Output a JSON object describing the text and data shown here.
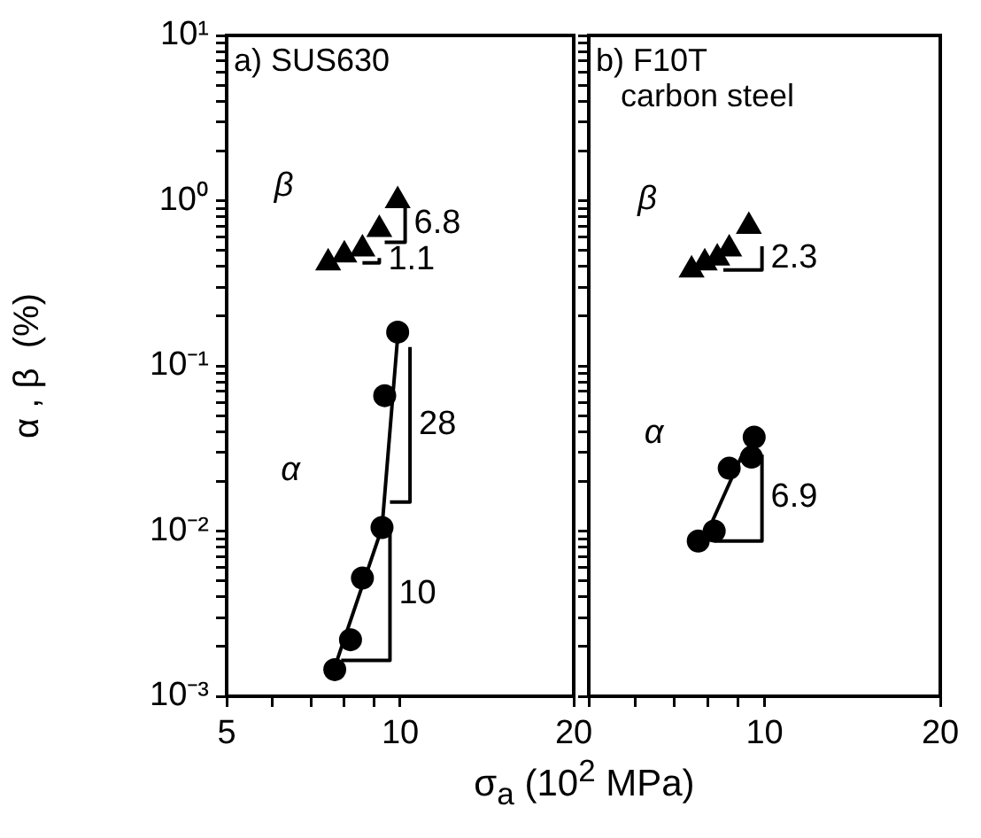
{
  "chart_data": [
    {
      "type": "scatter",
      "ylabel": "α , β  (%)",
      "xlabel": "σ$_{a}$ (10$^{2}$ MPa)",
      "log": "xy",
      "xlim": [
        5,
        20
      ],
      "ylim": [
        0.001,
        10
      ],
      "xticks": [
        5,
        {
          "value": 6,
          "label": null
        },
        {
          "value": 7,
          "label": null
        },
        {
          "value": 8,
          "label": null
        },
        {
          "value": 9,
          "label": null
        },
        10,
        20
      ],
      "yticks": [
        {
          "value": 0.001,
          "label": "10⁻³"
        },
        {
          "value": 0.002,
          "label": null
        },
        {
          "value": 0.003,
          "label": null
        },
        {
          "value": 0.004,
          "label": null
        },
        {
          "value": 0.005,
          "label": null
        },
        {
          "value": 0.006,
          "label": null
        },
        {
          "value": 0.007,
          "label": null
        },
        {
          "value": 0.008,
          "label": null
        },
        {
          "value": 0.009,
          "label": null
        },
        {
          "value": 0.01,
          "label": "10⁻²"
        },
        {
          "value": 0.02,
          "label": null
        },
        {
          "value": 0.03,
          "label": null
        },
        {
          "value": 0.04,
          "label": null
        },
        {
          "value": 0.05,
          "label": null
        },
        {
          "value": 0.06,
          "label": null
        },
        {
          "value": 0.07,
          "label": null
        },
        {
          "value": 0.08,
          "label": null
        },
        {
          "value": 0.09,
          "label": null
        },
        {
          "value": 0.1,
          "label": "10⁻¹"
        },
        {
          "value": 0.2,
          "label": null
        },
        {
          "value": 0.3,
          "label": null
        },
        {
          "value": 0.4,
          "label": null
        },
        {
          "value": 0.5,
          "label": null
        },
        {
          "value": 0.6,
          "label": null
        },
        {
          "value": 0.7,
          "label": null
        },
        {
          "value": 0.8,
          "label": null
        },
        {
          "value": 0.9,
          "label": null
        },
        {
          "value": 1,
          "label": "10⁰"
        },
        {
          "value": 2,
          "label": null
        },
        {
          "value": 3,
          "label": null
        },
        {
          "value": 4,
          "label": null
        },
        {
          "value": 5,
          "label": null
        },
        {
          "value": 6,
          "label": null
        },
        {
          "value": 7,
          "label": null
        },
        {
          "value": 8,
          "label": null
        },
        {
          "value": 9,
          "label": null
        },
        {
          "value": 10,
          "label": "10¹"
        }
      ],
      "series": [
        {
          "type": "scatter",
          "name": "β",
          "marker": "triangle",
          "color": "#000000",
          "x": [
            7.5,
            8.0,
            8.6,
            9.2,
            9.9
          ],
          "values": [
            0.42,
            0.47,
            0.51,
            0.67,
            1.0
          ]
        },
        {
          "type": "scatter",
          "name": "α",
          "marker": "circle",
          "color": "#000000",
          "x": [
            7.7,
            8.2,
            8.6,
            9.3,
            9.4,
            9.9
          ],
          "values": [
            0.00145,
            0.0022,
            0.0052,
            0.0105,
            0.066,
            0.16
          ]
        },
        {
          "type": "line",
          "marker": "none",
          "color": "#000000",
          "x": [
            7.7,
            9.3,
            9.9
          ],
          "values": [
            0.0015,
            0.0105,
            0.15
          ]
        },
        {
          "type": "line",
          "name": "10",
          "marker": "none",
          "color": "#000000",
          "x": [
            7.9,
            9.6,
            9.6
          ],
          "values": [
            0.00165,
            0.00165,
            0.0105
          ]
        },
        {
          "type": "line",
          "name": "28",
          "marker": "none",
          "color": "#000000",
          "x": [
            9.6,
            10.4,
            10.4
          ],
          "values": [
            0.015,
            0.015,
            0.13
          ]
        },
        {
          "type": "line",
          "name": "1.1",
          "marker": "none",
          "color": "#000000",
          "x": [
            8.6,
            9.2,
            9.2
          ],
          "values": [
            0.42,
            0.42,
            0.45
          ]
        },
        {
          "type": "line",
          "name": "6.8",
          "marker": "none",
          "color": "#000000",
          "x": [
            9.4,
            10.2,
            10.2
          ],
          "values": [
            0.56,
            0.56,
            0.95
          ]
        }
      ],
      "annotations": [
        "a) SUS630"
      ]
    },
    {
      "type": "scatter",
      "log": "xy",
      "tick_labels": "x",
      "xlim": [
        5,
        20
      ],
      "ylim": [
        0.001,
        10
      ],
      "xticks": [
        {
          "value": 5,
          "label": null
        },
        {
          "value": 6,
          "label": null
        },
        {
          "value": 7,
          "label": null
        },
        {
          "value": 8,
          "label": null
        },
        {
          "value": 9,
          "label": null
        },
        10,
        20
      ],
      "yticks": [
        {
          "value": 0.001,
          "label": null
        },
        {
          "value": 0.002,
          "label": null
        },
        {
          "value": 0.003,
          "label": null
        },
        {
          "value": 0.004,
          "label": null
        },
        {
          "value": 0.005,
          "label": null
        },
        {
          "value": 0.006,
          "label": null
        },
        {
          "value": 0.007,
          "label": null
        },
        {
          "value": 0.008,
          "label": null
        },
        {
          "value": 0.009,
          "label": null
        },
        {
          "value": 0.01,
          "label": null
        },
        {
          "value": 0.02,
          "label": null
        },
        {
          "value": 0.03,
          "label": null
        },
        {
          "value": 0.04,
          "label": null
        },
        {
          "value": 0.05,
          "label": null
        },
        {
          "value": 0.06,
          "label": null
        },
        {
          "value": 0.07,
          "label": null
        },
        {
          "value": 0.08,
          "label": null
        },
        {
          "value": 0.09,
          "label": null
        },
        {
          "value": 0.1,
          "label": null
        },
        {
          "value": 0.2,
          "label": null
        },
        {
          "value": 0.3,
          "label": null
        },
        {
          "value": 0.4,
          "label": null
        },
        {
          "value": 0.5,
          "label": null
        },
        {
          "value": 0.6,
          "label": null
        },
        {
          "value": 0.7,
          "label": null
        },
        {
          "value": 0.8,
          "label": null
        },
        {
          "value": 0.9,
          "label": null
        },
        {
          "value": 1,
          "label": null
        },
        {
          "value": 2,
          "label": null
        },
        {
          "value": 3,
          "label": null
        },
        {
          "value": 4,
          "label": null
        },
        {
          "value": 5,
          "label": null
        },
        {
          "value": 6,
          "label": null
        },
        {
          "value": 7,
          "label": null
        },
        {
          "value": 8,
          "label": null
        },
        {
          "value": 9,
          "label": null
        },
        {
          "value": 10,
          "label": null
        }
      ],
      "series": [
        {
          "type": "scatter",
          "name": "β",
          "marker": "triangle",
          "color": "#000000",
          "x": [
            7.5,
            7.9,
            8.3,
            8.7,
            9.4
          ],
          "values": [
            0.38,
            0.42,
            0.45,
            0.51,
            0.7
          ]
        },
        {
          "type": "scatter",
          "name": "α",
          "marker": "circle",
          "color": "#000000",
          "x": [
            7.7,
            8.2,
            8.7,
            9.5,
            9.6
          ],
          "values": [
            0.0087,
            0.01,
            0.024,
            0.028,
            0.037
          ]
        },
        {
          "type": "line",
          "marker": "none",
          "color": "#000000",
          "x": [
            8.0,
            9.2
          ],
          "values": [
            0.01,
            0.03
          ]
        },
        {
          "type": "line",
          "name": "6.9",
          "marker": "none",
          "color": "#000000",
          "x": [
            8.2,
            9.9,
            9.9
          ],
          "values": [
            0.0087,
            0.0087,
            0.029
          ]
        },
        {
          "type": "line",
          "name": "2.3",
          "marker": "none",
          "color": "#000000",
          "x": [
            8.5,
            9.9,
            9.9
          ],
          "values": [
            0.38,
            0.38,
            0.53
          ]
        }
      ],
      "annotations": [
        "b) F10T\ncarbon steel"
      ]
    }
  ]
}
